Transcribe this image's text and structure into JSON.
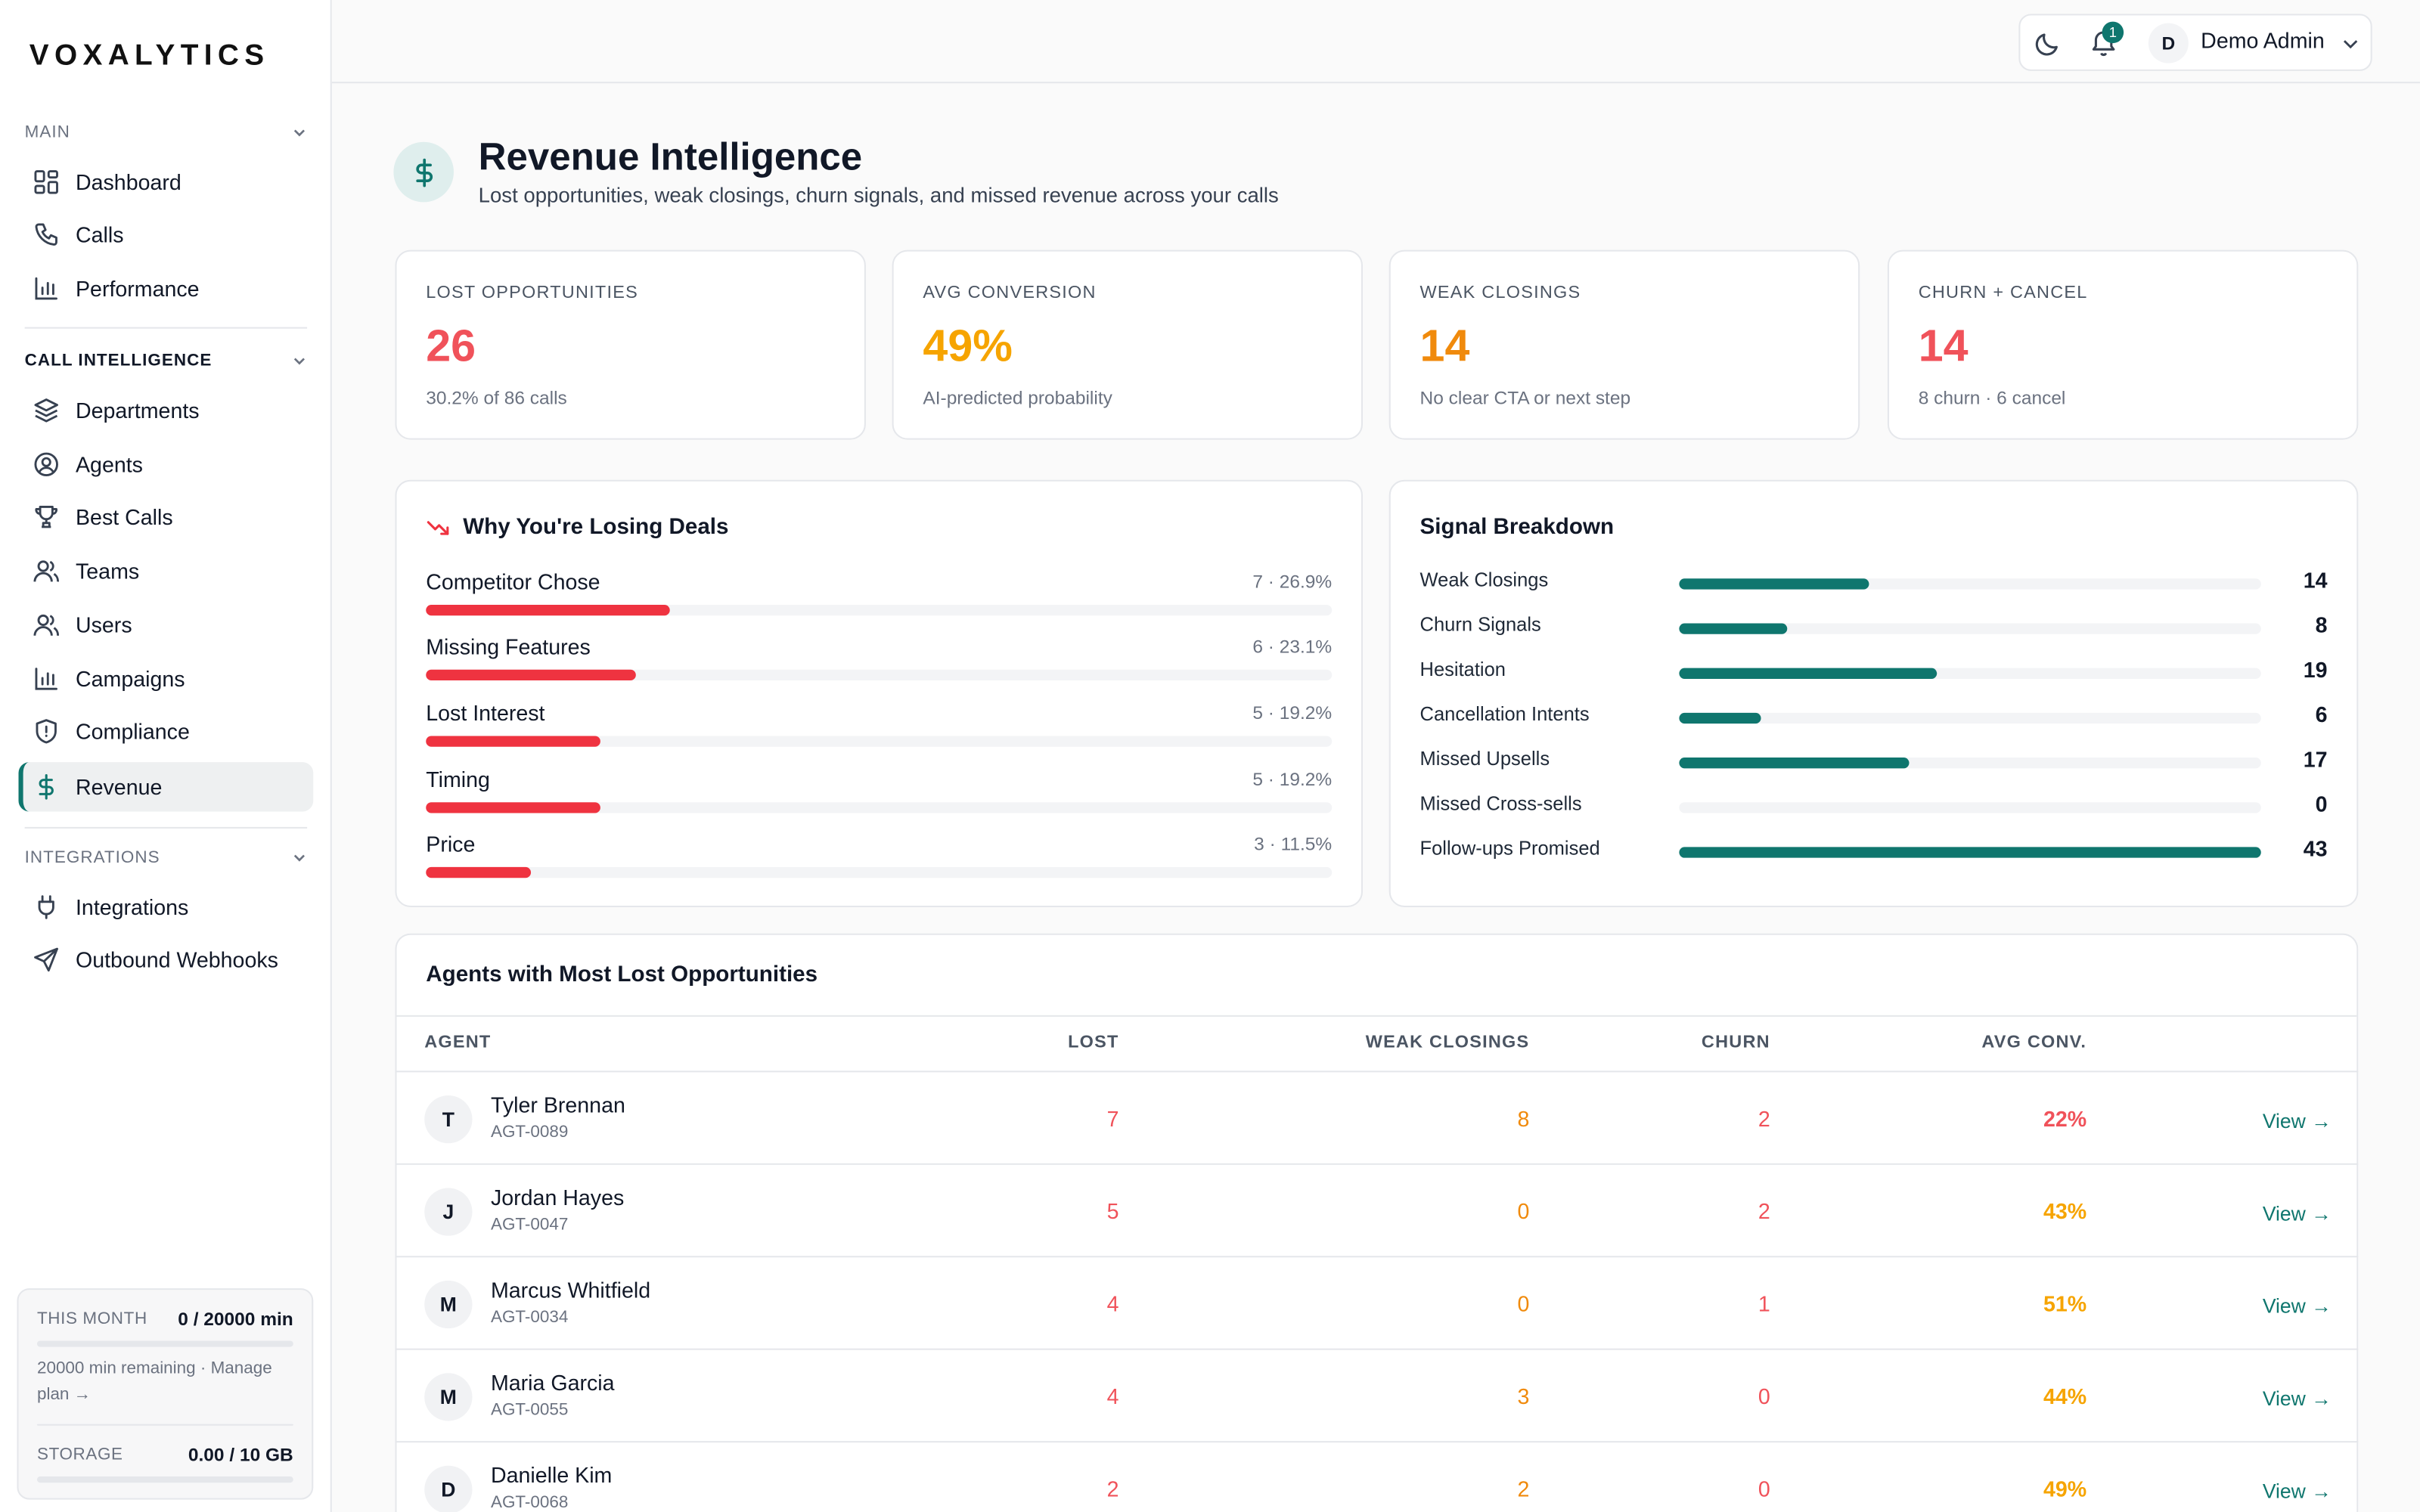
{
  "brand": {
    "logo": "VOXALYTICS"
  },
  "sidebar": {
    "sections": [
      {
        "title": "MAIN",
        "items": [
          {
            "label": "Dashboard",
            "icon": "grid-icon"
          },
          {
            "label": "Calls",
            "icon": "phone-icon"
          },
          {
            "label": "Performance",
            "icon": "bar-chart-icon"
          }
        ]
      },
      {
        "title": "CALL INTELLIGENCE",
        "items": [
          {
            "label": "Departments",
            "icon": "layers-icon"
          },
          {
            "label": "Agents",
            "icon": "user-circle-icon"
          },
          {
            "label": "Best Calls",
            "icon": "trophy-icon"
          },
          {
            "label": "Teams",
            "icon": "users-icon"
          },
          {
            "label": "Users",
            "icon": "users-icon"
          },
          {
            "label": "Campaigns",
            "icon": "bar-chart-icon"
          },
          {
            "label": "Compliance",
            "icon": "shield-icon"
          },
          {
            "label": "Revenue",
            "icon": "dollar-icon",
            "active": true
          }
        ]
      },
      {
        "title": "INTEGRATIONS",
        "items": [
          {
            "label": "Integrations",
            "icon": "plug-icon"
          },
          {
            "label": "Outbound Webhooks",
            "icon": "send-icon"
          }
        ]
      }
    ],
    "usage": {
      "month_label": "THIS MONTH",
      "month_value": "0 / 20000 min",
      "hint": "20000 min remaining · Manage plan →",
      "storage_label": "STORAGE",
      "storage_value": "0.00 / 10 GB"
    }
  },
  "topbar": {
    "notifications": "1",
    "user_initial": "D",
    "user_name": "Demo Admin"
  },
  "page": {
    "title": "Revenue Intelligence",
    "subtitle": "Lost opportunities, weak closings, churn signals, and missed revenue across your calls"
  },
  "kpis": [
    {
      "label": "LOST OPPORTUNITIES",
      "value": "26",
      "sub": "30.2% of 86 calls",
      "color": "#f0525a"
    },
    {
      "label": "AVG CONVERSION",
      "value": "49%",
      "sub": "AI-predicted probability",
      "color": "#f6a400"
    },
    {
      "label": "WEAK CLOSINGS",
      "value": "14",
      "sub": "No clear CTA or next step",
      "color": "#f08a0c"
    },
    {
      "label": "CHURN + CANCEL",
      "value": "14",
      "sub": "8 churn · 6 cancel",
      "color": "#f0525a"
    }
  ],
  "losing": {
    "title": "Why You're Losing Deals",
    "items": [
      {
        "label": "Competitor Chose",
        "stat": "7 · 26.9%",
        "pct": 26.9
      },
      {
        "label": "Missing Features",
        "stat": "6 · 23.1%",
        "pct": 23.1
      },
      {
        "label": "Lost Interest",
        "stat": "5 · 19.2%",
        "pct": 19.2
      },
      {
        "label": "Timing",
        "stat": "5 · 19.2%",
        "pct": 19.2
      },
      {
        "label": "Price",
        "stat": "3 · 11.5%",
        "pct": 11.5
      }
    ]
  },
  "signals": {
    "title": "Signal Breakdown",
    "max": 43,
    "items": [
      {
        "label": "Weak Closings",
        "value": "14"
      },
      {
        "label": "Churn Signals",
        "value": "8"
      },
      {
        "label": "Hesitation",
        "value": "19"
      },
      {
        "label": "Cancellation Intents",
        "value": "6"
      },
      {
        "label": "Missed Upsells",
        "value": "17"
      },
      {
        "label": "Missed Cross-sells",
        "value": "0"
      },
      {
        "label": "Follow-ups Promised",
        "value": "43"
      }
    ]
  },
  "agents_table": {
    "title": "Agents with Most Lost Opportunities",
    "headers": {
      "agent": "AGENT",
      "lost": "LOST",
      "weak": "WEAK CLOSINGS",
      "churn": "CHURN",
      "conv": "AVG CONV."
    },
    "view_label": "View →",
    "rows": [
      {
        "initial": "T",
        "name": "Tyler Brennan",
        "id": "AGT-0089",
        "lost": "7",
        "weak": "8",
        "churn": "2",
        "conv": "22%",
        "conv_color": "#f0525a"
      },
      {
        "initial": "J",
        "name": "Jordan Hayes",
        "id": "AGT-0047",
        "lost": "5",
        "weak": "0",
        "churn": "2",
        "conv": "43%",
        "conv_color": "#f6a400"
      },
      {
        "initial": "M",
        "name": "Marcus Whitfield",
        "id": "AGT-0034",
        "lost": "4",
        "weak": "0",
        "churn": "1",
        "conv": "51%",
        "conv_color": "#f6a400"
      },
      {
        "initial": "M",
        "name": "Maria Garcia",
        "id": "AGT-0055",
        "lost": "4",
        "weak": "3",
        "churn": "0",
        "conv": "44%",
        "conv_color": "#f6a400"
      },
      {
        "initial": "D",
        "name": "Danielle Kim",
        "id": "AGT-0068",
        "lost": "2",
        "weak": "2",
        "churn": "0",
        "conv": "49%",
        "conv_color": "#f6a400"
      }
    ]
  }
}
